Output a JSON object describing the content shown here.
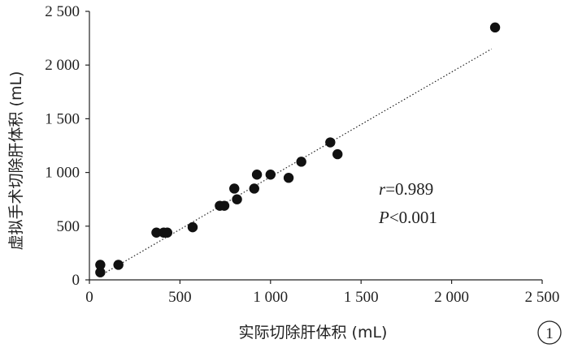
{
  "chart_data": {
    "type": "scatter",
    "title": "",
    "xlabel": "实际切除肝体积 (mL)",
    "ylabel": "虚拟手术切除肝体积 (mL)",
    "xlim": [
      0,
      2500
    ],
    "ylim": [
      0,
      2500
    ],
    "x_ticks": [
      0,
      500,
      1000,
      1500,
      2000,
      2500
    ],
    "y_ticks": [
      0,
      500,
      1000,
      1500,
      2000,
      2500
    ],
    "x_tick_labels": [
      "0",
      "500",
      "1 000",
      "1 500",
      "2 000",
      "2 500"
    ],
    "y_tick_labels": [
      "0",
      "500",
      "1 000",
      "1 500",
      "2 000",
      "2 500"
    ],
    "grid": false,
    "marker_color": "#111111",
    "points": [
      {
        "x": 60,
        "y": 70
      },
      {
        "x": 60,
        "y": 140
      },
      {
        "x": 160,
        "y": 140
      },
      {
        "x": 370,
        "y": 440
      },
      {
        "x": 410,
        "y": 440
      },
      {
        "x": 430,
        "y": 440
      },
      {
        "x": 570,
        "y": 490
      },
      {
        "x": 720,
        "y": 690
      },
      {
        "x": 745,
        "y": 690
      },
      {
        "x": 800,
        "y": 850
      },
      {
        "x": 815,
        "y": 750
      },
      {
        "x": 910,
        "y": 850
      },
      {
        "x": 925,
        "y": 980
      },
      {
        "x": 1000,
        "y": 980
      },
      {
        "x": 1100,
        "y": 950
      },
      {
        "x": 1170,
        "y": 1100
      },
      {
        "x": 1330,
        "y": 1280
      },
      {
        "x": 1370,
        "y": 1170
      },
      {
        "x": 2240,
        "y": 2350
      }
    ],
    "trendline": {
      "style": "dotted",
      "x": [
        60,
        2220
      ],
      "y": [
        40,
        2150
      ]
    },
    "stats": {
      "r_symbol": "r",
      "r_text": "=0.989",
      "p_symbol": "P",
      "p_text": "<0.001"
    },
    "panel_label": "1"
  }
}
